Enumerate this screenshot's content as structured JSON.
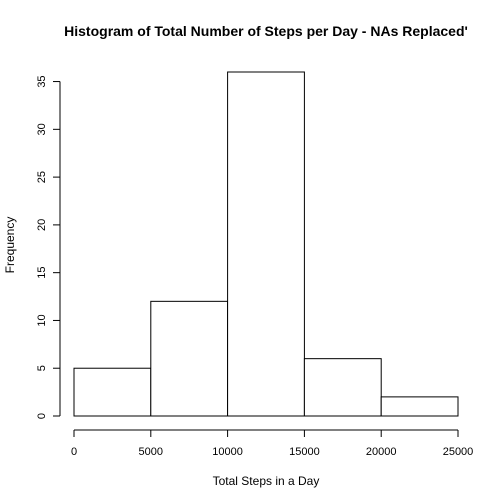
{
  "chart_data": {
    "type": "bar",
    "title": "Histogram of Total Number of Steps per Day - NAs Replaced'",
    "xlabel": "Total Steps in a Day",
    "ylabel": "Frequency",
    "bins": [
      {
        "from": 0,
        "to": 5000,
        "count": 5
      },
      {
        "from": 5000,
        "to": 10000,
        "count": 12
      },
      {
        "from": 10000,
        "to": 15000,
        "count": 36
      },
      {
        "from": 15000,
        "to": 20000,
        "count": 6
      },
      {
        "from": 20000,
        "to": 25000,
        "count": 2
      }
    ],
    "xlim": [
      0,
      25000
    ],
    "ylim": [
      0,
      36
    ],
    "x_ticks": [
      0,
      5000,
      10000,
      15000,
      20000,
      25000
    ],
    "y_ticks": [
      0,
      5,
      10,
      15,
      20,
      25,
      30,
      35
    ],
    "grid": false,
    "colors": {
      "bar_fill": "#ffffff",
      "bar_stroke": "#000000",
      "axis": "#000000"
    }
  }
}
